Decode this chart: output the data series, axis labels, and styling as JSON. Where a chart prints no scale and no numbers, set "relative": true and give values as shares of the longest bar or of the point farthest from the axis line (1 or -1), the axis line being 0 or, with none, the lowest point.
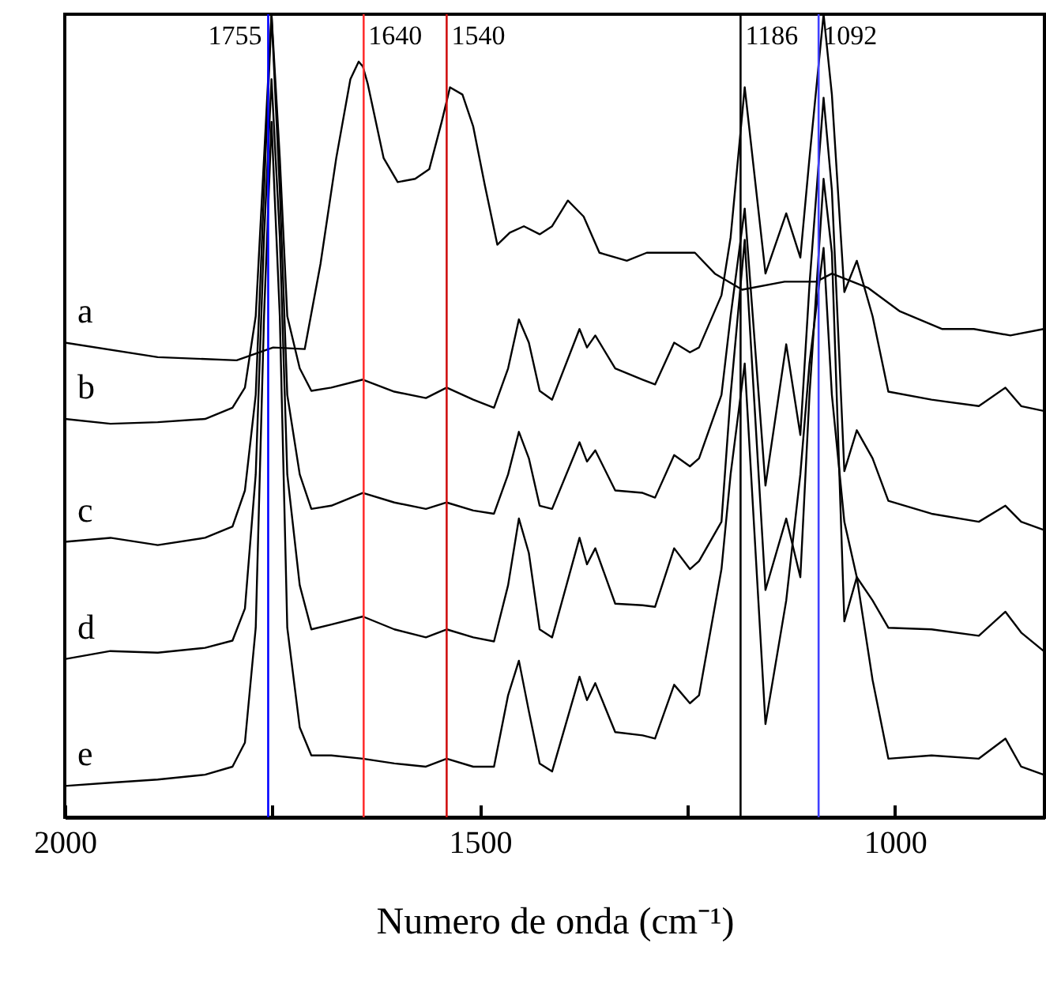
{
  "chart_data": {
    "type": "line",
    "relative": true,
    "xlabel": "Numero de onda (cm⁻¹)",
    "xlim": [
      2000,
      820
    ],
    "xticks": [
      2000,
      {
        "value": 1750,
        "label": null
      },
      1500,
      {
        "value": 1250,
        "label": null
      },
      1000
    ],
    "x": [
      2000,
      1945,
      1888,
      1831,
      1798,
      1783,
      1770,
      1760,
      1751,
      1741,
      1732,
      1717,
      1703,
      1679,
      1641,
      1603,
      1565,
      1540,
      1508,
      1483,
      1466,
      1453,
      1441,
      1428,
      1413,
      1380,
      1371,
      1361,
      1337,
      1304,
      1289,
      1266,
      1247,
      1236,
      1209,
      1198,
      1181,
      1156,
      1131,
      1114,
      1103,
      1086,
      1076,
      1061,
      1046,
      1027,
      1008,
      956,
      899,
      867,
      848,
      821
    ],
    "series": [
      {
        "name": "a",
        "color": "#000000",
        "x": [
          2000,
          1888,
          1793,
          1749,
          1711,
          1692,
          1673,
          1656,
          1646,
          1641,
          1635,
          1616,
          1599,
          1578,
          1561,
          1546,
          1536,
          1521,
          1508,
          1494,
          1479,
          1464,
          1447,
          1428,
          1413,
          1394,
          1375,
          1356,
          1323,
          1299,
          1241,
          1217,
          1184,
          1133,
          1095,
          1076,
          1032,
          994,
          943,
          905,
          861,
          821
        ],
        "values": [
          0.591,
          0.573,
          0.569,
          0.585,
          0.583,
          0.689,
          0.821,
          0.919,
          0.941,
          0.935,
          0.913,
          0.821,
          0.791,
          0.795,
          0.807,
          0.866,
          0.909,
          0.9,
          0.86,
          0.787,
          0.713,
          0.728,
          0.736,
          0.726,
          0.736,
          0.768,
          0.748,
          0.703,
          0.693,
          0.703,
          0.703,
          0.677,
          0.657,
          0.667,
          0.667,
          0.677,
          0.659,
          0.63,
          0.608,
          0.608,
          0.6,
          0.608
        ]
      },
      {
        "name": "b",
        "color": "#000000",
        "values": [
          0.496,
          0.49,
          0.492,
          0.496,
          0.51,
          0.535,
          0.624,
          0.821,
          1.0,
          0.821,
          0.624,
          0.559,
          0.531,
          0.535,
          0.545,
          0.53,
          0.522,
          0.535,
          0.52,
          0.51,
          0.559,
          0.62,
          0.591,
          0.531,
          0.52,
          0.608,
          0.585,
          0.6,
          0.559,
          0.545,
          0.539,
          0.591,
          0.579,
          0.585,
          0.65,
          0.722,
          0.909,
          0.677,
          0.752,
          0.697,
          0.821,
          1.0,
          0.9,
          0.654,
          0.693,
          0.624,
          0.53,
          0.52,
          0.512,
          0.535,
          0.512,
          0.506
        ]
      },
      {
        "name": "c",
        "color": "#000000",
        "values": [
          0.343,
          0.348,
          0.339,
          0.348,
          0.362,
          0.407,
          0.526,
          0.781,
          1.0,
          0.781,
          0.526,
          0.427,
          0.384,
          0.388,
          0.404,
          0.392,
          0.384,
          0.392,
          0.382,
          0.378,
          0.427,
          0.48,
          0.447,
          0.388,
          0.384,
          0.467,
          0.443,
          0.457,
          0.407,
          0.404,
          0.398,
          0.451,
          0.437,
          0.447,
          0.526,
          0.624,
          0.758,
          0.413,
          0.589,
          0.476,
          0.663,
          0.896,
          0.781,
          0.431,
          0.482,
          0.447,
          0.394,
          0.378,
          0.368,
          0.388,
          0.368,
          0.358
        ]
      },
      {
        "name": "d",
        "color": "#000000",
        "values": [
          0.197,
          0.207,
          0.205,
          0.211,
          0.22,
          0.26,
          0.427,
          0.722,
          0.919,
          0.722,
          0.427,
          0.289,
          0.234,
          0.24,
          0.25,
          0.234,
          0.224,
          0.234,
          0.224,
          0.219,
          0.289,
          0.372,
          0.329,
          0.234,
          0.224,
          0.348,
          0.315,
          0.335,
          0.266,
          0.264,
          0.262,
          0.335,
          0.309,
          0.319,
          0.368,
          0.526,
          0.719,
          0.283,
          0.372,
          0.299,
          0.526,
          0.795,
          0.703,
          0.244,
          0.299,
          0.27,
          0.236,
          0.234,
          0.226,
          0.256,
          0.23,
          0.207
        ]
      },
      {
        "name": "e",
        "color": "#000000",
        "values": [
          0.039,
          0.043,
          0.047,
          0.053,
          0.063,
          0.093,
          0.236,
          0.624,
          0.866,
          0.624,
          0.236,
          0.112,
          0.077,
          0.077,
          0.073,
          0.067,
          0.063,
          0.073,
          0.063,
          0.063,
          0.152,
          0.195,
          0.132,
          0.067,
          0.057,
          0.175,
          0.146,
          0.167,
          0.106,
          0.102,
          0.098,
          0.165,
          0.142,
          0.152,
          0.309,
          0.427,
          0.565,
          0.116,
          0.27,
          0.427,
          0.565,
          0.709,
          0.526,
          0.368,
          0.299,
          0.171,
          0.073,
          0.077,
          0.073,
          0.098,
          0.063,
          0.053
        ]
      }
    ],
    "ref_lines": [
      {
        "axis": "x",
        "value": 1755,
        "label": "1755",
        "color": "#0000ff"
      },
      {
        "axis": "x",
        "value": 1640,
        "label": "1640",
        "color": "#ff3030"
      },
      {
        "axis": "x",
        "value": 1540,
        "label": "1540",
        "color": "#d01010"
      },
      {
        "axis": "x",
        "value": 1186,
        "label": "1186",
        "color": "#000000"
      },
      {
        "axis": "x",
        "value": 1092,
        "label": "1092",
        "color": "#4040ff"
      }
    ]
  }
}
